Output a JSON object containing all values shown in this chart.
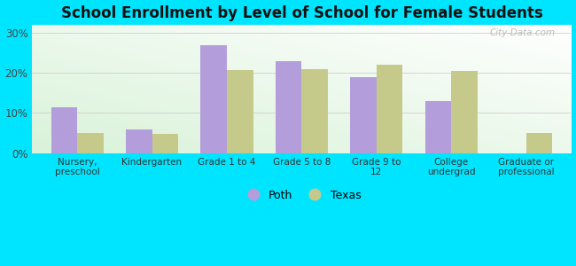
{
  "title": "School Enrollment by Level of School for Female Students",
  "categories": [
    "Nursery,\npreschool",
    "Kindergarten",
    "Grade 1 to 4",
    "Grade 5 to 8",
    "Grade 9 to\n12",
    "College\nundergrad",
    "Graduate or\nprofessional"
  ],
  "poth_values": [
    11.5,
    6.0,
    27.0,
    23.0,
    19.0,
    13.0,
    0.0
  ],
  "texas_values": [
    5.0,
    4.8,
    20.8,
    21.0,
    22.0,
    20.5,
    5.0
  ],
  "poth_color": "#b39ddb",
  "texas_color": "#c5c98a",
  "background_outer": "#00e5ff",
  "ylim": [
    0,
    32
  ],
  "yticks": [
    0,
    10,
    20,
    30
  ],
  "ytick_labels": [
    "0%",
    "10%",
    "20%",
    "30%"
  ],
  "bar_width": 0.35,
  "legend_labels": [
    "Poth",
    "Texas"
  ],
  "watermark": "City-Data.com",
  "grid_color": "#cccccc"
}
